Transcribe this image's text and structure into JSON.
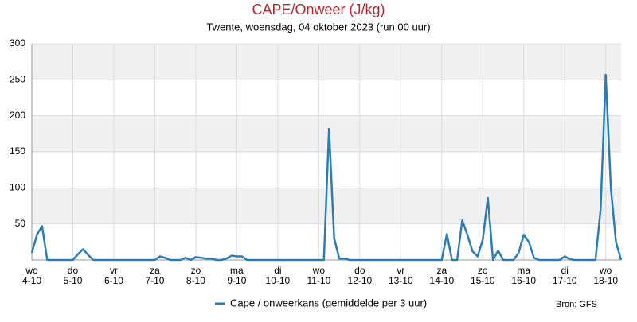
{
  "chart_data": {
    "type": "line",
    "title": "CAPE/Onweer (J/kg)",
    "subtitle": "Twente, woensdag, 04 oktober 2023 (run 00 uur)",
    "annotation": "Bron: GFS",
    "categories": [
      "wo 4-10",
      null,
      null,
      null,
      null,
      null,
      null,
      null,
      "do 5-10",
      null,
      null,
      null,
      null,
      null,
      null,
      null,
      "vr 6-10",
      null,
      null,
      null,
      null,
      null,
      null,
      null,
      "za 7-10",
      null,
      null,
      null,
      null,
      null,
      null,
      null,
      "zo 8-10",
      null,
      null,
      null,
      null,
      null,
      null,
      null,
      "ma 9-10",
      null,
      null,
      null,
      null,
      null,
      null,
      null,
      "di 10-10",
      null,
      null,
      null,
      null,
      null,
      null,
      null,
      "wo 11-10",
      null,
      null,
      null,
      null,
      null,
      null,
      null,
      "do 12-10",
      null,
      null,
      null,
      null,
      null,
      null,
      null,
      "vr 13-10",
      null,
      null,
      null,
      null,
      null,
      null,
      null,
      "za 14-10",
      null,
      null,
      null,
      null,
      null,
      null,
      null,
      "zo 15-10",
      null,
      null,
      null,
      null,
      null,
      null,
      null,
      "ma 16-10",
      null,
      null,
      null,
      null,
      null,
      null,
      null,
      "di 17-10",
      null,
      null,
      null,
      null,
      null,
      null,
      null,
      "wo 18-10",
      null,
      null,
      null
    ],
    "series": [
      {
        "name": "Cape / onweerkans (gemiddelde per 3 uur)",
        "color": "#2b7db4",
        "values": [
          10,
          35,
          47,
          0,
          0,
          0,
          0,
          0,
          0,
          8,
          15,
          7,
          0,
          0,
          0,
          0,
          0,
          0,
          0,
          0,
          0,
          0,
          0,
          0,
          0,
          5,
          3,
          0,
          0,
          0,
          3,
          0,
          4,
          3,
          2,
          2,
          0,
          0,
          2,
          6,
          5,
          5,
          0,
          0,
          0,
          0,
          0,
          0,
          0,
          0,
          0,
          0,
          0,
          0,
          0,
          0,
          0,
          0,
          182,
          30,
          2,
          2,
          0,
          0,
          0,
          0,
          0,
          0,
          0,
          0,
          0,
          0,
          0,
          0,
          0,
          0,
          0,
          0,
          0,
          0,
          0,
          36,
          0,
          0,
          55,
          35,
          12,
          5,
          28,
          86,
          0,
          13,
          0,
          0,
          0,
          10,
          35,
          25,
          3,
          0,
          0,
          0,
          0,
          0,
          5,
          1,
          0,
          0,
          0,
          0,
          0,
          70,
          257,
          100,
          25,
          0
        ]
      }
    ],
    "ylim": [
      0,
      300
    ],
    "yticks": [
      50,
      100,
      150,
      200,
      250,
      300
    ],
    "grid": true
  }
}
